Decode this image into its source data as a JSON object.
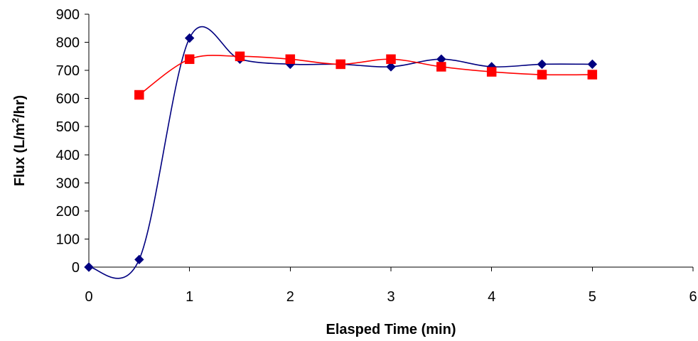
{
  "chart_data": {
    "type": "line",
    "title": "",
    "xlabel": "Elasped Time (min)",
    "ylabel": {
      "prefix": "Flux (L/m",
      "superscript": "2",
      "suffix": "/hr)"
    },
    "xlim": [
      0,
      6
    ],
    "ylim": [
      0,
      900
    ],
    "xticks": [
      "0",
      "1",
      "2",
      "3",
      "4",
      "5",
      "6"
    ],
    "yticks": [
      "0",
      "100",
      "200",
      "300",
      "400",
      "500",
      "600",
      "700",
      "800",
      "900"
    ],
    "grid": false,
    "legend": "none",
    "series": [
      {
        "color": "#000080",
        "marker": "diamond",
        "smooth": true,
        "x": [
          0,
          0.5,
          1,
          1.5,
          2,
          2.5,
          3,
          3.5,
          4,
          4.5,
          5
        ],
        "y": [
          0,
          27,
          815,
          740,
          722,
          722,
          713,
          740,
          713,
          722,
          722
        ]
      },
      {
        "color": "#ff0000",
        "marker": "square",
        "smooth": true,
        "x": [
          0.5,
          1,
          1.5,
          2,
          2.5,
          3,
          3.5,
          4,
          4.5,
          5
        ],
        "y": [
          613,
          740,
          750,
          740,
          722,
          740,
          713,
          695,
          685,
          685
        ]
      }
    ]
  }
}
